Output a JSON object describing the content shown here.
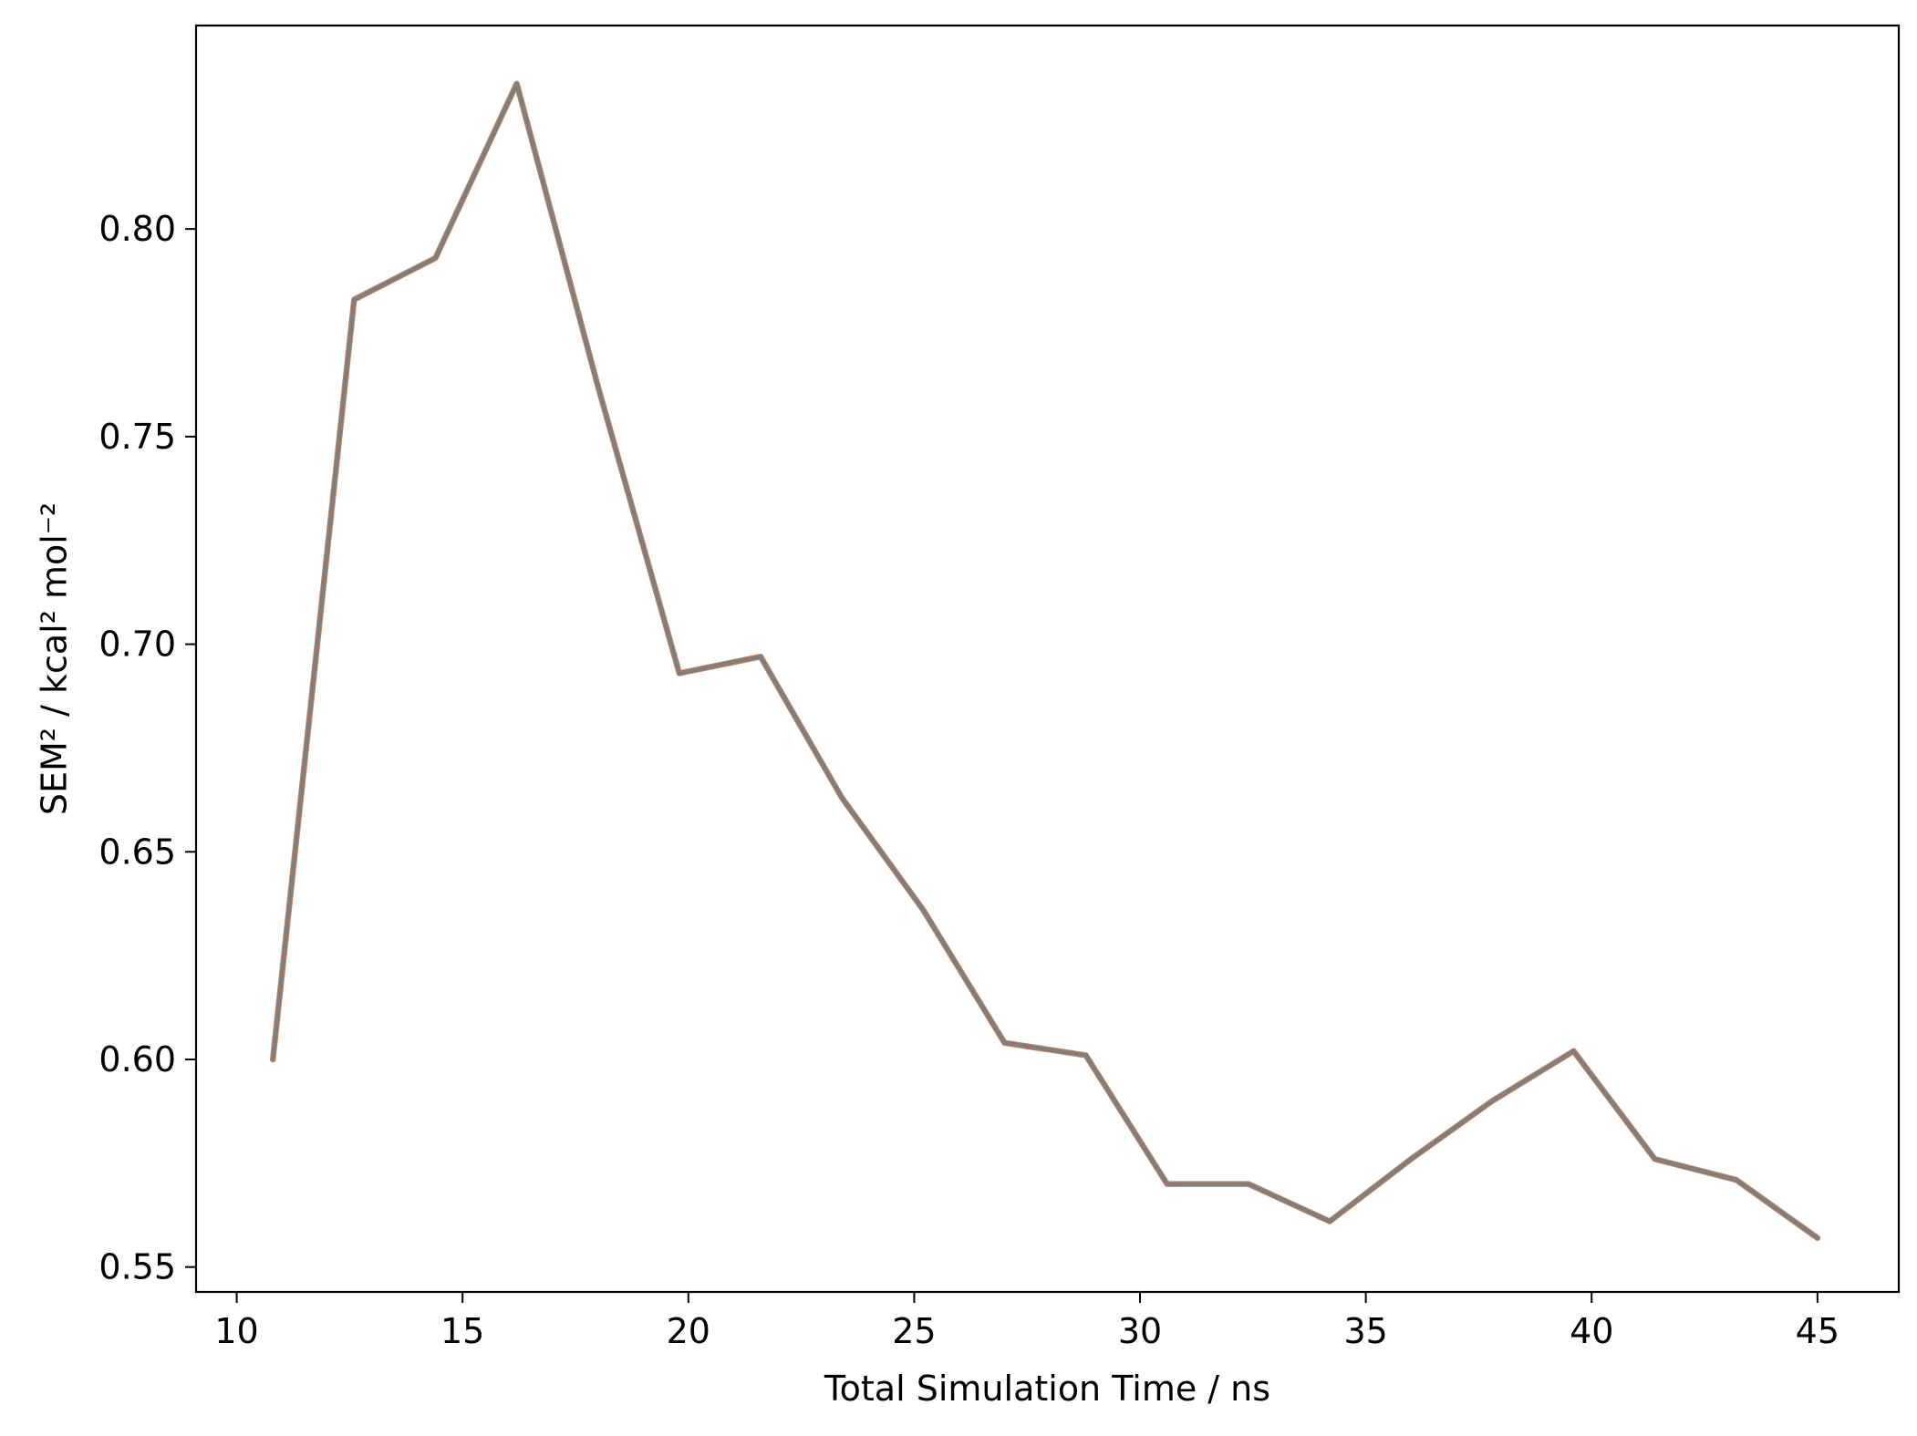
{
  "chart_data": {
    "type": "line",
    "title": "",
    "xlabel": "Total Simulation Time / ns",
    "ylabel": "SEM² / kcal² mol⁻²",
    "xlim": [
      9.1,
      46.8
    ],
    "ylim": [
      0.544,
      0.849
    ],
    "x_ticks": [
      10,
      15,
      20,
      25,
      30,
      35,
      40,
      45
    ],
    "x_tick_labels": [
      "10",
      "15",
      "20",
      "25",
      "30",
      "35",
      "40",
      "45"
    ],
    "y_ticks": [
      0.55,
      0.6,
      0.65,
      0.7,
      0.75,
      0.8
    ],
    "y_tick_labels": [
      "0.55",
      "0.60",
      "0.65",
      "0.70",
      "0.75",
      "0.80"
    ],
    "grid": false,
    "series": [
      {
        "color": "#7f7f7f",
        "accent_color": "#d08050",
        "x": [
          10.8,
          12.6,
          14.4,
          16.2,
          18.0,
          19.8,
          21.6,
          23.4,
          25.2,
          27.0,
          28.8,
          30.6,
          32.4,
          34.2,
          36.0,
          37.8,
          39.6,
          41.4,
          43.2,
          45.0
        ],
        "y": [
          0.6,
          0.783,
          0.793,
          0.835,
          0.762,
          0.693,
          0.697,
          0.663,
          0.636,
          0.604,
          0.601,
          0.57,
          0.57,
          0.561,
          0.576,
          0.59,
          0.602,
          0.576,
          0.571,
          0.557
        ]
      }
    ]
  }
}
